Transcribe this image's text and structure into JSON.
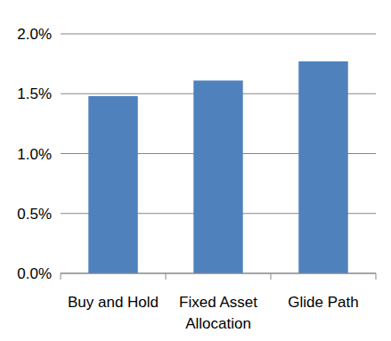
{
  "chart_data": {
    "type": "bar",
    "categories": [
      "Buy and Hold",
      "Fixed Asset Allocation",
      "Glide Path"
    ],
    "values": [
      1.48,
      1.61,
      1.77
    ],
    "color": "#4f81bd",
    "ylim": [
      0,
      2
    ],
    "yticks": [
      {
        "value": 0,
        "label": "0.0%"
      },
      {
        "value": 0.5,
        "label": "0.5%"
      },
      {
        "value": 1,
        "label": "1.0%"
      },
      {
        "value": 1.5,
        "label": "1.5%"
      },
      {
        "value": 2,
        "label": "2.0%"
      }
    ],
    "grid": true
  }
}
